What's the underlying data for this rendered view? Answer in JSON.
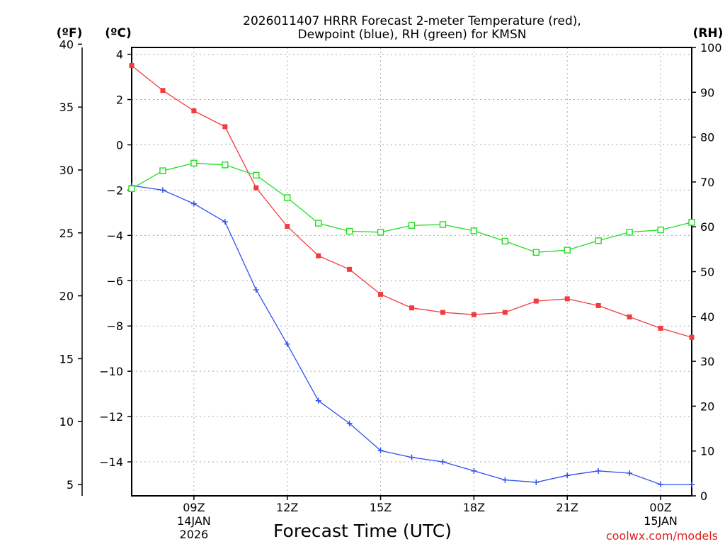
{
  "chart_data": {
    "type": "line",
    "title_line1": "2026011407 HRRR Forecast 2-meter Temperature (red),",
    "title_line2": "Dewpoint (blue), RH (green) for KMSN",
    "xlabel": "Forecast Time (UTC)",
    "credit": "coolwx.com/models",
    "hours": [
      7,
      8,
      9,
      10,
      11,
      12,
      13,
      14,
      15,
      16,
      17,
      18,
      19,
      20,
      21,
      22,
      23,
      24,
      25
    ],
    "xlim": [
      7,
      25
    ],
    "x_ticks": [
      {
        "hour": 9,
        "label": "09Z",
        "date": "14JAN",
        "year": "2026"
      },
      {
        "hour": 12,
        "label": "12Z",
        "date": "",
        "year": ""
      },
      {
        "hour": 15,
        "label": "15Z",
        "date": "",
        "year": ""
      },
      {
        "hour": 18,
        "label": "18Z",
        "date": "",
        "year": ""
      },
      {
        "hour": 21,
        "label": "21Z",
        "date": "",
        "year": ""
      },
      {
        "hour": 24,
        "label": "00Z",
        "date": "15JAN",
        "year": ""
      }
    ],
    "left_axis_f": {
      "unit": "(ºF)",
      "ticks": [
        5,
        10,
        15,
        20,
        25,
        30,
        35,
        40
      ],
      "labels": [
        "5",
        "10",
        "15",
        "20",
        "25",
        "30",
        "35",
        "40"
      ]
    },
    "left_axis_c": {
      "unit": "(ºC)",
      "range": [
        -15.5,
        4.3
      ],
      "ticks": [
        -14,
        -12,
        -10,
        -8,
        -6,
        -4,
        -2,
        0,
        2,
        4
      ],
      "labels": [
        "−14",
        "−12",
        "−10",
        "−8",
        "−6",
        "−4",
        "−2",
        "0",
        "2",
        "4"
      ]
    },
    "right_axis_rh": {
      "unit": "(RH)",
      "range": [
        0,
        100
      ],
      "ticks": [
        0,
        10,
        20,
        30,
        40,
        50,
        60,
        70,
        80,
        90,
        100
      ],
      "labels": [
        "0",
        "10",
        "20",
        "30",
        "40",
        "50",
        "60",
        "70",
        "80",
        "90",
        "100"
      ]
    },
    "series": [
      {
        "name": "2-meter Temperature",
        "unit": "C",
        "color": "#f03c3c",
        "marker": "filled-square",
        "values": [
          3.5,
          2.4,
          1.5,
          0.8,
          -1.9,
          -3.6,
          -4.9,
          -5.5,
          -6.6,
          -7.2,
          -7.4,
          -7.5,
          -7.4,
          -6.9,
          -6.8,
          -7.1,
          -7.6,
          -8.1,
          -8.5
        ]
      },
      {
        "name": "Dewpoint",
        "unit": "C",
        "color": "#3050f0",
        "marker": "plus",
        "values": [
          -1.8,
          -2.0,
          -2.6,
          -3.4,
          -6.4,
          -8.8,
          -11.3,
          -12.3,
          -13.5,
          -13.8,
          -14.0,
          -14.4,
          -14.8,
          -14.9,
          -14.6,
          -14.4,
          -14.5,
          -15.0,
          -15.0
        ]
      },
      {
        "name": "RH",
        "unit": "%",
        "color": "#22dd22",
        "marker": "open-square",
        "values": [
          68.5,
          72.5,
          74.2,
          73.8,
          71.5,
          66.5,
          60.8,
          59.0,
          58.8,
          60.3,
          60.5,
          59.1,
          56.8,
          54.3,
          54.8,
          56.9,
          58.8,
          59.3,
          61.0
        ]
      }
    ]
  }
}
